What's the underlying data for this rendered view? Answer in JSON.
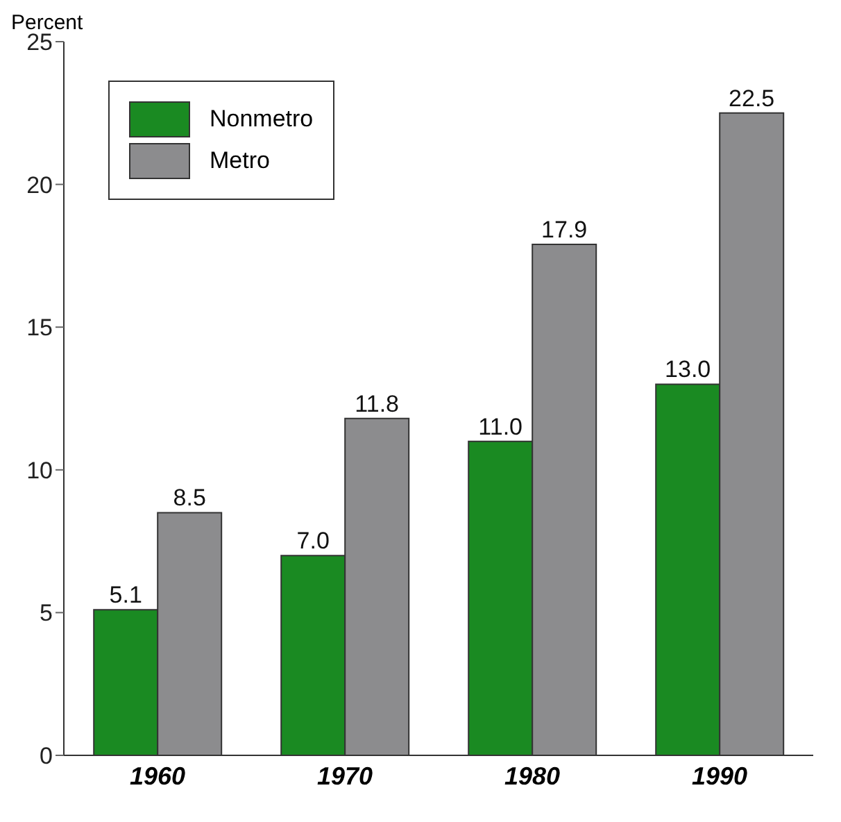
{
  "chart_data": {
    "type": "bar",
    "ylabel": "Percent",
    "categories": [
      "1960",
      "1970",
      "1980",
      "1990"
    ],
    "series": [
      {
        "name": "Nonmetro",
        "color": "#1a8a22",
        "values": [
          5.1,
          7.0,
          11.0,
          13.0
        ],
        "value_labels": [
          "5.1",
          "7.0",
          "11.0",
          "13.0"
        ]
      },
      {
        "name": "Metro",
        "color": "#8c8c8e",
        "values": [
          8.5,
          11.8,
          17.9,
          22.5
        ],
        "value_labels": [
          "8.5",
          "11.8",
          "17.9",
          "22.5"
        ]
      }
    ],
    "ylim": [
      0,
      25
    ],
    "yticks": [
      0,
      5,
      10,
      15,
      20,
      25
    ],
    "legend": "top left",
    "grid": false
  }
}
